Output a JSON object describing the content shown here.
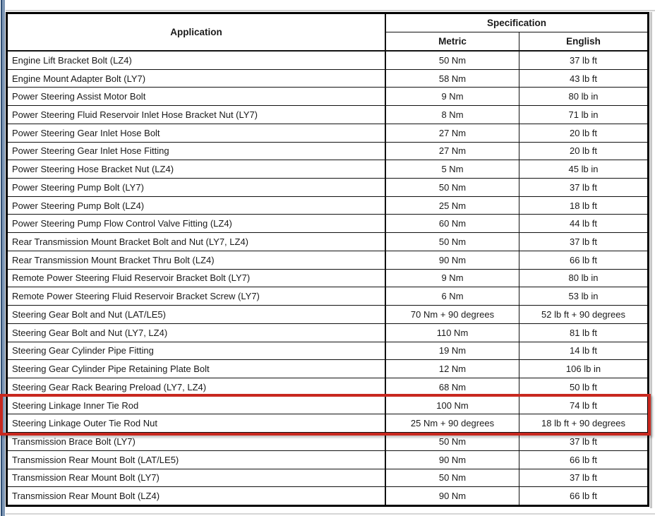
{
  "table": {
    "headers": {
      "application": "Application",
      "specification": "Specification",
      "metric": "Metric",
      "english": "English"
    },
    "rows": [
      {
        "application": "Engine Lift Bracket Bolt (LZ4)",
        "metric": "50 Nm",
        "english": "37 lb ft"
      },
      {
        "application": "Engine Mount Adapter Bolt (LY7)",
        "metric": "58 Nm",
        "english": "43 lb ft"
      },
      {
        "application": "Power Steering Assist Motor Bolt",
        "metric": "9 Nm",
        "english": "80 lb in"
      },
      {
        "application": "Power Steering Fluid Reservoir Inlet Hose Bracket Nut (LY7)",
        "metric": "8 Nm",
        "english": "71 lb in"
      },
      {
        "application": "Power Steering Gear Inlet Hose Bolt",
        "metric": "27 Nm",
        "english": "20 lb ft"
      },
      {
        "application": "Power Steering Gear Inlet Hose Fitting",
        "metric": "27 Nm",
        "english": "20 lb ft"
      },
      {
        "application": "Power Steering Hose Bracket Nut (LZ4)",
        "metric": "5 Nm",
        "english": "45 lb in"
      },
      {
        "application": "Power Steering Pump Bolt (LY7)",
        "metric": "50 Nm",
        "english": "37 lb ft"
      },
      {
        "application": "Power Steering Pump Bolt (LZ4)",
        "metric": "25 Nm",
        "english": "18 lb ft"
      },
      {
        "application": "Power Steering Pump Flow Control Valve Fitting (LZ4)",
        "metric": "60 Nm",
        "english": "44 lb ft"
      },
      {
        "application": "Rear Transmission Mount Bracket Bolt and Nut (LY7, LZ4)",
        "metric": "50 Nm",
        "english": "37 lb ft"
      },
      {
        "application": "Rear Transmission Mount Bracket Thru Bolt (LZ4)",
        "metric": "90 Nm",
        "english": "66 lb ft"
      },
      {
        "application": "Remote Power Steering Fluid Reservoir Bracket Bolt (LY7)",
        "metric": "9 Nm",
        "english": "80 lb in"
      },
      {
        "application": "Remote Power Steering Fluid Reservoir Bracket Screw (LY7)",
        "metric": "6 Nm",
        "english": "53 lb in"
      },
      {
        "application": "Steering Gear Bolt and Nut (LAT/LE5)",
        "metric": "70 Nm + 90 degrees",
        "english": "52 lb ft + 90 degrees"
      },
      {
        "application": "Steering Gear Bolt and Nut (LY7, LZ4)",
        "metric": "110 Nm",
        "english": "81 lb ft"
      },
      {
        "application": "Steering Gear Cylinder Pipe Fitting",
        "metric": "19 Nm",
        "english": "14 lb ft"
      },
      {
        "application": "Steering Gear Cylinder Pipe Retaining Plate Bolt",
        "metric": "12 Nm",
        "english": "106 lb in"
      },
      {
        "application": "Steering Gear Rack Bearing Preload (LY7, LZ4)",
        "metric": "68 Nm",
        "english": "50 lb ft"
      },
      {
        "application": "Steering Linkage Inner Tie Rod",
        "metric": "100 Nm",
        "english": "74 lb ft"
      },
      {
        "application": "Steering Linkage Outer Tie Rod Nut",
        "metric": "25 Nm + 90 degrees",
        "english": "18 lb ft + 90 degrees"
      },
      {
        "application": "Transmission Brace Bolt (LY7)",
        "metric": "50 Nm",
        "english": "37 lb ft"
      },
      {
        "application": "Transmission Rear Mount Bolt (LAT/LE5)",
        "metric": "90 Nm",
        "english": "66 lb ft"
      },
      {
        "application": "Transmission Rear Mount Bolt (LY7)",
        "metric": "50 Nm",
        "english": "37 lb ft"
      },
      {
        "application": "Transmission Rear Mount Bolt (LZ4)",
        "metric": "90 Nm",
        "english": "66 lb ft"
      }
    ],
    "highlight": {
      "start_index": 19,
      "end_index": 20,
      "color": "#c8281f"
    }
  },
  "colors": {
    "window_edge_dark": "#2f4e73",
    "window_edge_light": "#7e97b5"
  }
}
